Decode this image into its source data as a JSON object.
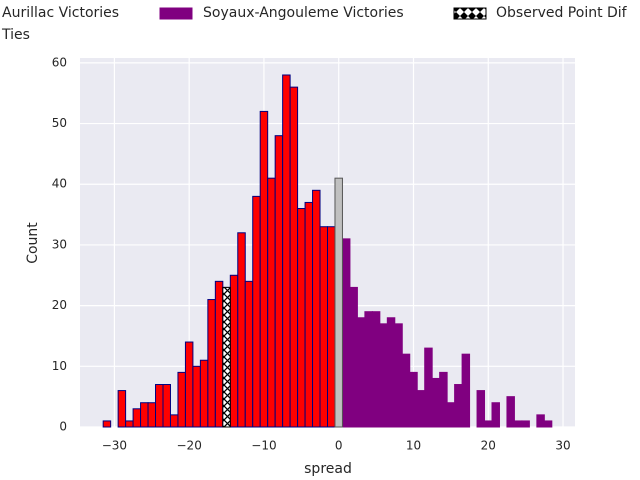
{
  "chart_data": {
    "type": "histogram",
    "x_label": "spread",
    "y_label": "Count",
    "xlim": [
      -34.6,
      31.6
    ],
    "ylim": [
      0,
      60.8
    ],
    "xticks": [
      {
        "value": -30,
        "label": "−30"
      },
      {
        "value": -20,
        "label": "−20"
      },
      {
        "value": -10,
        "label": "−10"
      },
      0,
      10,
      20,
      30
    ],
    "yticks": [
      0,
      10,
      20,
      30,
      40,
      50,
      60
    ],
    "grid": true,
    "series": [
      {
        "name": "Aurillac Victories",
        "color": "#ff0000",
        "edgecolor": "#000080",
        "bins": [
          -31.5,
          -30.5,
          -29.5,
          -28.5,
          -27.5,
          -26.5,
          -25.5,
          -24.5,
          -23.5,
          -22.5,
          -21.5,
          -20.5,
          -19.5,
          -18.5,
          -17.5,
          -16.5,
          -15.5,
          -14.5,
          -13.5,
          -12.5,
          -11.5,
          -10.5,
          -9.5,
          -8.5,
          -7.5,
          -6.5,
          -5.5,
          -4.5,
          -3.5,
          -2.5,
          -1.5,
          -0.5
        ],
        "values": [
          1,
          0,
          6,
          1,
          3,
          4,
          4,
          7,
          7,
          2,
          9,
          14,
          10,
          11,
          21,
          24,
          23,
          25,
          32,
          24,
          38,
          52,
          41,
          48,
          58,
          56,
          36,
          37,
          39,
          33,
          33
        ]
      },
      {
        "name": "Soyaux-Angouleme Victories",
        "color": "#800080",
        "edgecolor": "#800080",
        "bins": [
          0.5,
          1.5,
          2.5,
          3.5,
          4.5,
          5.5,
          6.5,
          7.5,
          8.5,
          9.5,
          10.5,
          11.5,
          12.5,
          13.5,
          14.5,
          15.5,
          16.5,
          17.5,
          18.5,
          19.5,
          20.5,
          21.5,
          22.5,
          23.5,
          24.5,
          25.5,
          26.5,
          27.5,
          28.5
        ],
        "values": [
          31,
          23,
          18,
          19,
          19,
          17,
          18,
          17,
          12,
          9,
          6,
          13,
          8,
          9,
          4,
          7,
          12,
          0,
          6,
          1,
          4,
          0,
          5,
          1,
          1,
          0,
          2,
          1
        ]
      },
      {
        "name": "Observed Point Dif",
        "color": "#ffffff",
        "edgecolor": "#000000",
        "hatch": true,
        "bins": [
          -15.5,
          -14.5
        ],
        "values": [
          23
        ]
      },
      {
        "name": "Ties",
        "color": "#c0c0c0",
        "edgecolor": "#555555",
        "bins": [
          -0.5,
          0.5
        ],
        "values": [
          41
        ]
      }
    ]
  }
}
